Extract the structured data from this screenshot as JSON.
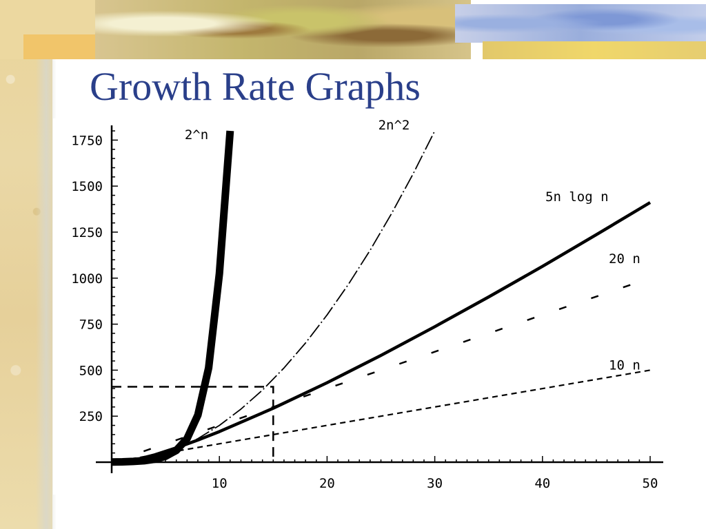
{
  "title": "Growth Rate Graphs",
  "chart_data": {
    "type": "line",
    "xlim": [
      0,
      50
    ],
    "ylim": [
      0,
      1800
    ],
    "x_ticks": [
      10,
      20,
      30,
      40,
      50
    ],
    "y_ticks": [
      250,
      500,
      750,
      1000,
      1250,
      1500,
      1750
    ],
    "grid": false,
    "series": [
      {
        "name": "2^n",
        "style": "very-thick",
        "x": [
          0,
          1,
          2,
          3,
          4,
          5,
          6,
          7,
          8,
          9,
          10,
          11
        ],
        "y": [
          1,
          2,
          4,
          8,
          16,
          32,
          64,
          128,
          256,
          512,
          1024,
          1800
        ]
      },
      {
        "name": "2n^2",
        "style": "thin-dashdot",
        "x": [
          0,
          2,
          4,
          6,
          8,
          10,
          12,
          14,
          16,
          18,
          20,
          22,
          24,
          26,
          28,
          30
        ],
        "y": [
          0,
          8,
          32,
          72,
          128,
          200,
          288,
          392,
          512,
          648,
          800,
          968,
          1152,
          1352,
          1568,
          1800
        ]
      },
      {
        "name": "5n log n",
        "style": "thick",
        "x": [
          1,
          2,
          4,
          6,
          8,
          10,
          15,
          20,
          25,
          30,
          35,
          40,
          45,
          50
        ],
        "y": [
          0,
          10,
          40,
          78,
          120,
          166,
          293,
          432,
          580,
          736,
          898,
          1064,
          1236,
          1411
        ]
      },
      {
        "name": "20 n",
        "style": "dashed",
        "x": [
          0,
          50
        ],
        "y": [
          0,
          1000
        ]
      },
      {
        "name": "10 n",
        "style": "short-dashed",
        "x": [
          0,
          50
        ],
        "y": [
          0,
          500
        ]
      }
    ],
    "annotations": {
      "crossover_x": 15,
      "crossover_y": 410
    }
  }
}
